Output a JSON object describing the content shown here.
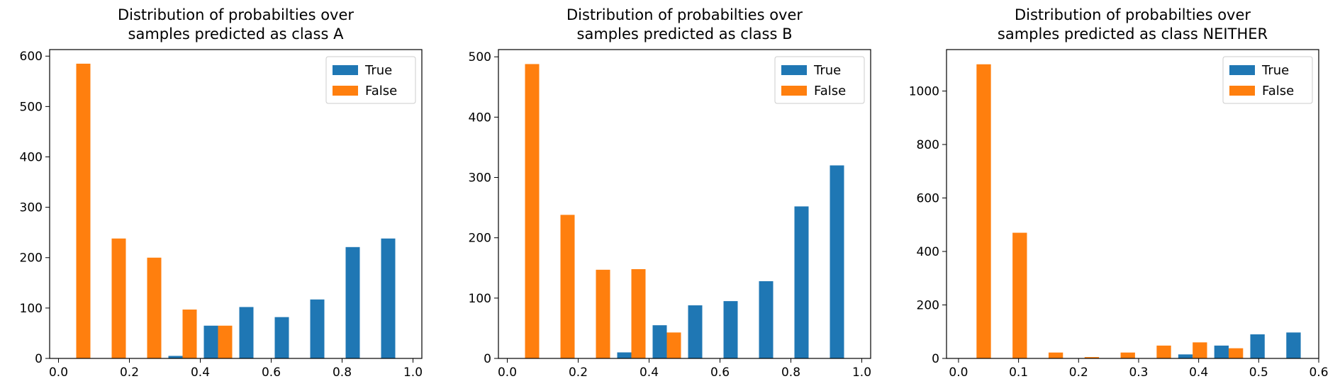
{
  "colors": {
    "true": "#1f77b4",
    "false": "#ff7f0e"
  },
  "chart_data": [
    {
      "type": "bar",
      "title": [
        "Distribution of probabilties over",
        "samples predicted as class A"
      ],
      "legend": {
        "placement": "top-right",
        "entries": [
          "True",
          "False"
        ]
      },
      "grid": false,
      "xlim": [
        -0.025,
        1.025
      ],
      "ylim": [
        0,
        613
      ],
      "xticks": [
        0.0,
        0.2,
        0.4,
        0.6,
        0.8,
        1.0
      ],
      "xtick_labels": [
        "0.0",
        "0.2",
        "0.4",
        "0.6",
        "0.8",
        "1.0"
      ],
      "yticks": [
        0,
        100,
        200,
        300,
        400,
        500,
        600
      ],
      "ytick_labels": [
        "0",
        "100",
        "200",
        "300",
        "400",
        "500",
        "600"
      ],
      "bin_edges": [
        0.0,
        0.1,
        0.2,
        0.3,
        0.4,
        0.5,
        0.6,
        0.7,
        0.8,
        0.9,
        1.0
      ],
      "series": [
        {
          "name": "True",
          "values": [
            0,
            0,
            0,
            5,
            65,
            102,
            82,
            117,
            221,
            238
          ]
        },
        {
          "name": "False",
          "values": [
            585,
            238,
            200,
            97,
            65,
            0,
            0,
            0,
            0,
            0
          ]
        }
      ]
    },
    {
      "type": "bar",
      "title": [
        "Distribution of probabilties over",
        "samples predicted as class B"
      ],
      "legend": {
        "placement": "top-right",
        "entries": [
          "True",
          "False"
        ]
      },
      "grid": false,
      "xlim": [
        -0.025,
        1.025
      ],
      "ylim": [
        0,
        512
      ],
      "xticks": [
        0.0,
        0.2,
        0.4,
        0.6,
        0.8,
        1.0
      ],
      "xtick_labels": [
        "0.0",
        "0.2",
        "0.4",
        "0.6",
        "0.8",
        "1.0"
      ],
      "yticks": [
        0,
        100,
        200,
        300,
        400,
        500
      ],
      "ytick_labels": [
        "0",
        "100",
        "200",
        "300",
        "400",
        "500"
      ],
      "bin_edges": [
        0.0,
        0.1,
        0.2,
        0.3,
        0.4,
        0.5,
        0.6,
        0.7,
        0.8,
        0.9,
        1.0
      ],
      "series": [
        {
          "name": "True",
          "values": [
            0,
            0,
            0,
            10,
            55,
            88,
            95,
            128,
            252,
            320
          ]
        },
        {
          "name": "False",
          "values": [
            488,
            238,
            147,
            148,
            43,
            0,
            0,
            0,
            0,
            0
          ]
        }
      ]
    },
    {
      "type": "bar",
      "title": [
        "Distribution of probabilties over",
        "samples predicted as class NEITHER"
      ],
      "legend": {
        "placement": "top-right",
        "entries": [
          "True",
          "False"
        ]
      },
      "grid": false,
      "xlim": [
        -0.02,
        0.6
      ],
      "ylim": [
        0,
        1155
      ],
      "xticks": [
        0.0,
        0.1,
        0.2,
        0.3,
        0.4,
        0.5,
        0.6
      ],
      "xtick_labels": [
        "0.0",
        "0.1",
        "0.2",
        "0.3",
        "0.4",
        "0.5",
        "0.6"
      ],
      "yticks": [
        0,
        200,
        400,
        600,
        800,
        1000
      ],
      "ytick_labels": [
        "0",
        "200",
        "400",
        "600",
        "800",
        "1000"
      ],
      "bin_edges": [
        0.0,
        0.06,
        0.12,
        0.18,
        0.24,
        0.3,
        0.36,
        0.42,
        0.48,
        0.54,
        0.6
      ],
      "series": [
        {
          "name": "True",
          "values": [
            0,
            0,
            0,
            0,
            0,
            0,
            15,
            48,
            90,
            97
          ]
        },
        {
          "name": "False",
          "values": [
            1100,
            470,
            22,
            5,
            22,
            48,
            60,
            38,
            0,
            0
          ]
        }
      ]
    }
  ]
}
